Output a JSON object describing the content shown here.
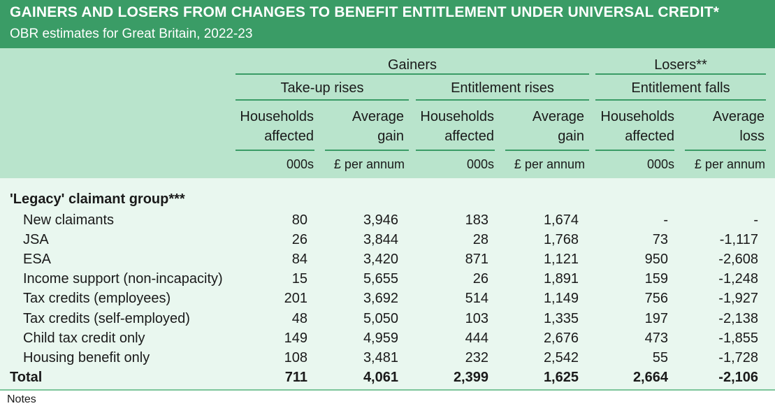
{
  "banner": {
    "title": "GAINERS AND LOSERS FROM CHANGES TO BENEFIT ENTITLEMENT UNDER UNIVERSAL CREDIT*",
    "subtitle": "OBR estimates for Great Britain, 2022-23"
  },
  "header": {
    "gainers": "Gainers",
    "losers": "Losers**",
    "takeup": "Take-up rises",
    "ent_rises": "Entitlement rises",
    "ent_falls": "Entitlement falls",
    "columns": [
      {
        "line1": "Households",
        "line2": "affected",
        "unit": "000s"
      },
      {
        "line1": "Average",
        "line2": "gain",
        "unit": "£ per annum"
      },
      {
        "line1": "Households",
        "line2": "affected",
        "unit": "000s"
      },
      {
        "line1": "Average",
        "line2": "gain",
        "unit": "£ per annum"
      },
      {
        "line1": "Households",
        "line2": "affected",
        "unit": "000s"
      },
      {
        "line1": "Average",
        "line2": "loss",
        "unit": "£ per annum"
      }
    ]
  },
  "group_title": "'Legacy' claimant group***",
  "rows": [
    {
      "label": "New claimants",
      "values": [
        "80",
        "3,946",
        "183",
        "1,674",
        "-",
        "-"
      ]
    },
    {
      "label": "JSA",
      "values": [
        "26",
        "3,844",
        "28",
        "1,768",
        "73",
        "-1,117"
      ]
    },
    {
      "label": "ESA",
      "values": [
        "84",
        "3,420",
        "871",
        "1,121",
        "950",
        "-2,608"
      ]
    },
    {
      "label": "Income support (non-incapacity)",
      "values": [
        "15",
        "5,655",
        "26",
        "1,891",
        "159",
        "-1,248"
      ]
    },
    {
      "label": "Tax credits (employees)",
      "values": [
        "201",
        "3,692",
        "514",
        "1,149",
        "756",
        "-1,927"
      ]
    },
    {
      "label": "Tax credits (self-employed)",
      "values": [
        "48",
        "5,050",
        "103",
        "1,335",
        "197",
        "-2,138"
      ]
    },
    {
      "label": "Child tax credit only",
      "values": [
        "149",
        "4,959",
        "444",
        "2,676",
        "473",
        "-1,855"
      ]
    },
    {
      "label": "Housing benefit only",
      "values": [
        "108",
        "3,481",
        "232",
        "2,542",
        "55",
        "-1,728"
      ]
    }
  ],
  "total": {
    "label": "Total",
    "values": [
      "711",
      "4,061",
      "2,399",
      "1,625",
      "2,664",
      "-2,106"
    ]
  },
  "notes_label": "Notes"
}
